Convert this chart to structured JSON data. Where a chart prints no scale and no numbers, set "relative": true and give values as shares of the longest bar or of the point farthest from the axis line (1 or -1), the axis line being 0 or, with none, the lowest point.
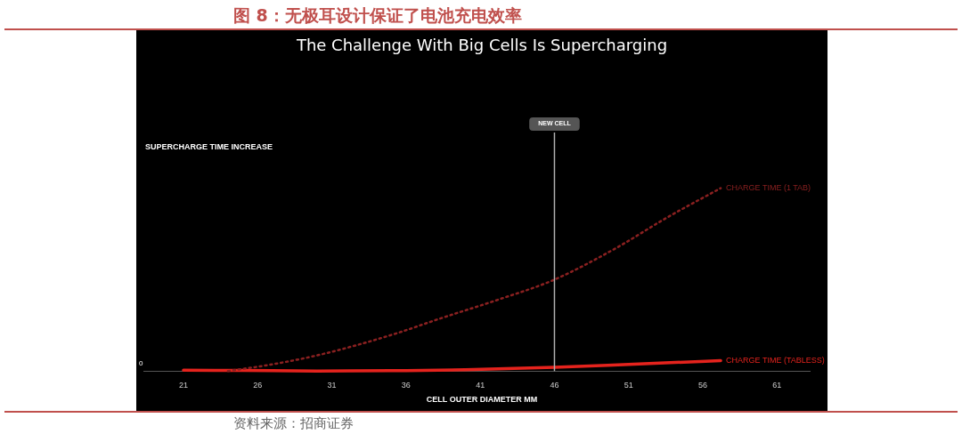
{
  "chart_data": {
    "type": "line",
    "title": "图 8：无极耳设计保证了电池充电效率",
    "subtitle": "The Challenge With Big Cells Is Supercharging",
    "xlabel": "CELL OUTER DIAMETER  MM",
    "ylabel": "SUPERCHARGE TIME INCREASE",
    "relative": true,
    "xlim": [
      18.3,
      63.2
    ],
    "xticks": [
      21,
      26,
      31,
      36,
      41,
      46,
      51,
      56,
      61
    ],
    "legend": false,
    "marker": "none",
    "series": [
      {
        "name": "CHARGE TIME (1 TAB)",
        "color": "#8a2020",
        "line_style": "dotted",
        "x": [
          24,
          26.8,
          29.7,
          32.6,
          35.5,
          38.4,
          42.2,
          46,
          50.1,
          53.6,
          57.2
        ],
        "values": [
          0,
          0.034,
          0.08,
          0.14,
          0.21,
          0.29,
          0.39,
          0.5,
          0.67,
          0.84,
          1
        ]
      },
      {
        "name": "CHARGE TIME (TABLESS)",
        "color": "#e5231d",
        "line_style": "solid",
        "x": [
          21,
          25,
          30,
          35,
          40,
          46,
          51,
          57.2
        ],
        "values": [
          0.005,
          0.003,
          0,
          0.002,
          0.007,
          0.02,
          0.036,
          0.057
        ]
      }
    ],
    "ref_lines": [
      {
        "axis": "x",
        "value": 46,
        "label": "NEW CELL",
        "color": "#b0b0b0"
      }
    ],
    "annotations": [
      "0",
      "资料来源：招商证券"
    ]
  }
}
